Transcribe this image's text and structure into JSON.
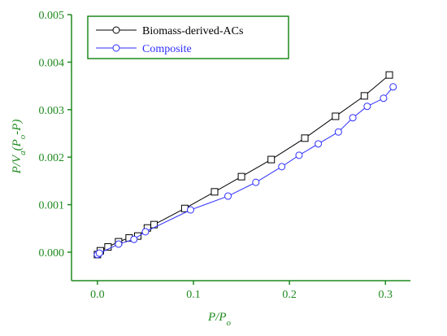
{
  "chart_data": {
    "type": "line",
    "xlabel": [
      "P/P",
      "o"
    ],
    "ylabel": [
      "P/V",
      "a",
      "(P",
      "o",
      "-P)"
    ],
    "xlim": [
      -0.027,
      0.326
    ],
    "ylim": [
      -0.0006,
      0.005
    ],
    "xticks": [
      {
        "value": 0,
        "label": "0.0"
      },
      0.1,
      0.2,
      0.3
    ],
    "yticks": [
      {
        "value": 0,
        "label": "0.000"
      },
      0.001,
      0.002,
      0.003,
      0.004,
      0.005
    ],
    "axis_color": "#1f8a1f",
    "series": [
      {
        "name": "Biomass-derived-ACs",
        "color": "#000000",
        "marker": "square",
        "x": [
          0.0,
          0.003,
          0.011,
          0.022,
          0.033,
          0.042,
          0.052,
          0.059,
          0.091,
          0.122,
          0.15,
          0.181,
          0.216,
          0.248,
          0.278,
          0.304
        ],
        "values": [
          -5e-05,
          3e-05,
          0.00011,
          0.00022,
          0.0003,
          0.00034,
          0.00051,
          0.00058,
          0.00092,
          0.00127,
          0.00159,
          0.00195,
          0.0024,
          0.00286,
          0.00329,
          0.00373
        ]
      },
      {
        "name": "Composite",
        "color": "#2f2fff",
        "marker": "circle",
        "x": [
          0.0,
          0.002,
          0.022,
          0.038,
          0.05,
          0.097,
          0.136,
          0.165,
          0.192,
          0.21,
          0.23,
          0.251,
          0.266,
          0.281,
          0.298,
          0.308
        ],
        "values": [
          -5e-05,
          -2e-05,
          0.00017,
          0.00027,
          0.00043,
          0.00089,
          0.00118,
          0.00147,
          0.0018,
          0.00204,
          0.00228,
          0.00253,
          0.00283,
          0.00307,
          0.00324,
          0.00348
        ]
      }
    ]
  }
}
